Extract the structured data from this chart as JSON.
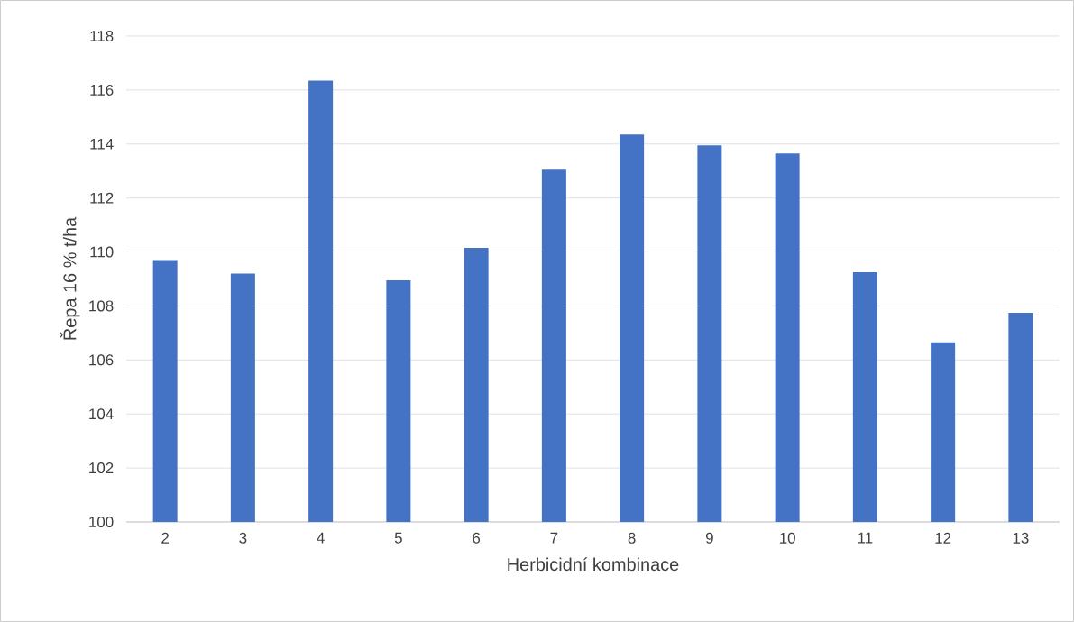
{
  "chart_data": {
    "type": "bar",
    "xlabel": "Herbicidní kombinace",
    "ylabel": "Řepa 16 % t/ha",
    "categories": [
      "2",
      "3",
      "4",
      "5",
      "6",
      "7",
      "8",
      "9",
      "10",
      "11",
      "12",
      "13"
    ],
    "values": [
      109.7,
      109.2,
      116.35,
      108.95,
      110.15,
      113.05,
      114.35,
      113.95,
      113.65,
      109.25,
      106.65,
      107.75
    ],
    "color": "#4472c4",
    "ylim": [
      100,
      118
    ],
    "yticks": [
      100,
      102,
      104,
      106,
      108,
      110,
      112,
      114,
      116,
      118
    ],
    "grid": "y"
  }
}
